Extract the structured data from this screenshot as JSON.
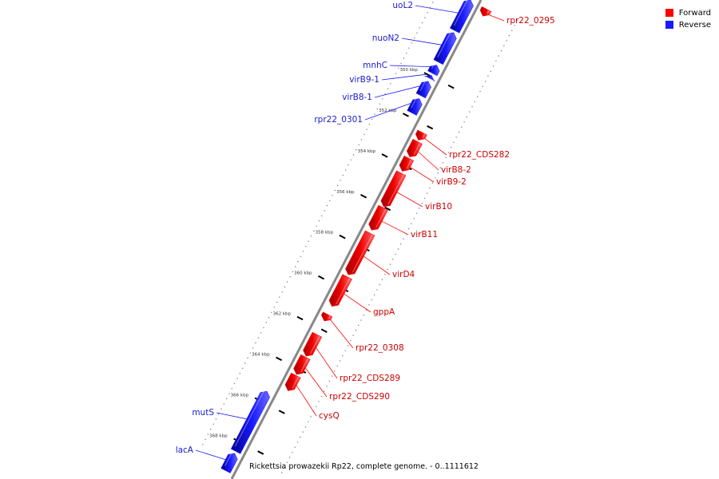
{
  "legend": {
    "forward_label": "Forward",
    "reverse_label": "Reverse",
    "forward_color": "#ff0000",
    "reverse_color": "#1a1aff"
  },
  "caption": "Rickettsia prowazekii Rp22, complete genome. - 0..1111612",
  "ticks": {
    "unit": "kbp",
    "major": [
      350,
      352,
      354,
      356,
      358,
      360,
      362,
      364,
      366,
      368
    ]
  },
  "genes": [
    {
      "label": "uoL2",
      "strand": "reverse"
    },
    {
      "label": "nuoN2",
      "strand": "reverse"
    },
    {
      "label": "mnhC",
      "strand": "reverse"
    },
    {
      "label": "virB9-1",
      "strand": "reverse"
    },
    {
      "label": "virB8-1",
      "strand": "reverse"
    },
    {
      "label": "rpr22_0301",
      "strand": "reverse"
    },
    {
      "label": "rpr22_0295",
      "strand": "forward"
    },
    {
      "label": "rpr22_CDS282",
      "strand": "forward"
    },
    {
      "label": "virB8-2",
      "strand": "forward"
    },
    {
      "label": "virB9-2",
      "strand": "forward"
    },
    {
      "label": "virB10",
      "strand": "forward"
    },
    {
      "label": "virB11",
      "strand": "forward"
    },
    {
      "label": "virD4",
      "strand": "forward"
    },
    {
      "label": "gppA",
      "strand": "forward"
    },
    {
      "label": "rpr22_0308",
      "strand": "forward"
    },
    {
      "label": "rpr22_CDS289",
      "strand": "forward"
    },
    {
      "label": "rpr22_CDS290",
      "strand": "forward"
    },
    {
      "label": "cysQ",
      "strand": "forward"
    },
    {
      "label": "mutS",
      "strand": "reverse"
    },
    {
      "label": "lacA",
      "strand": "reverse"
    }
  ]
}
